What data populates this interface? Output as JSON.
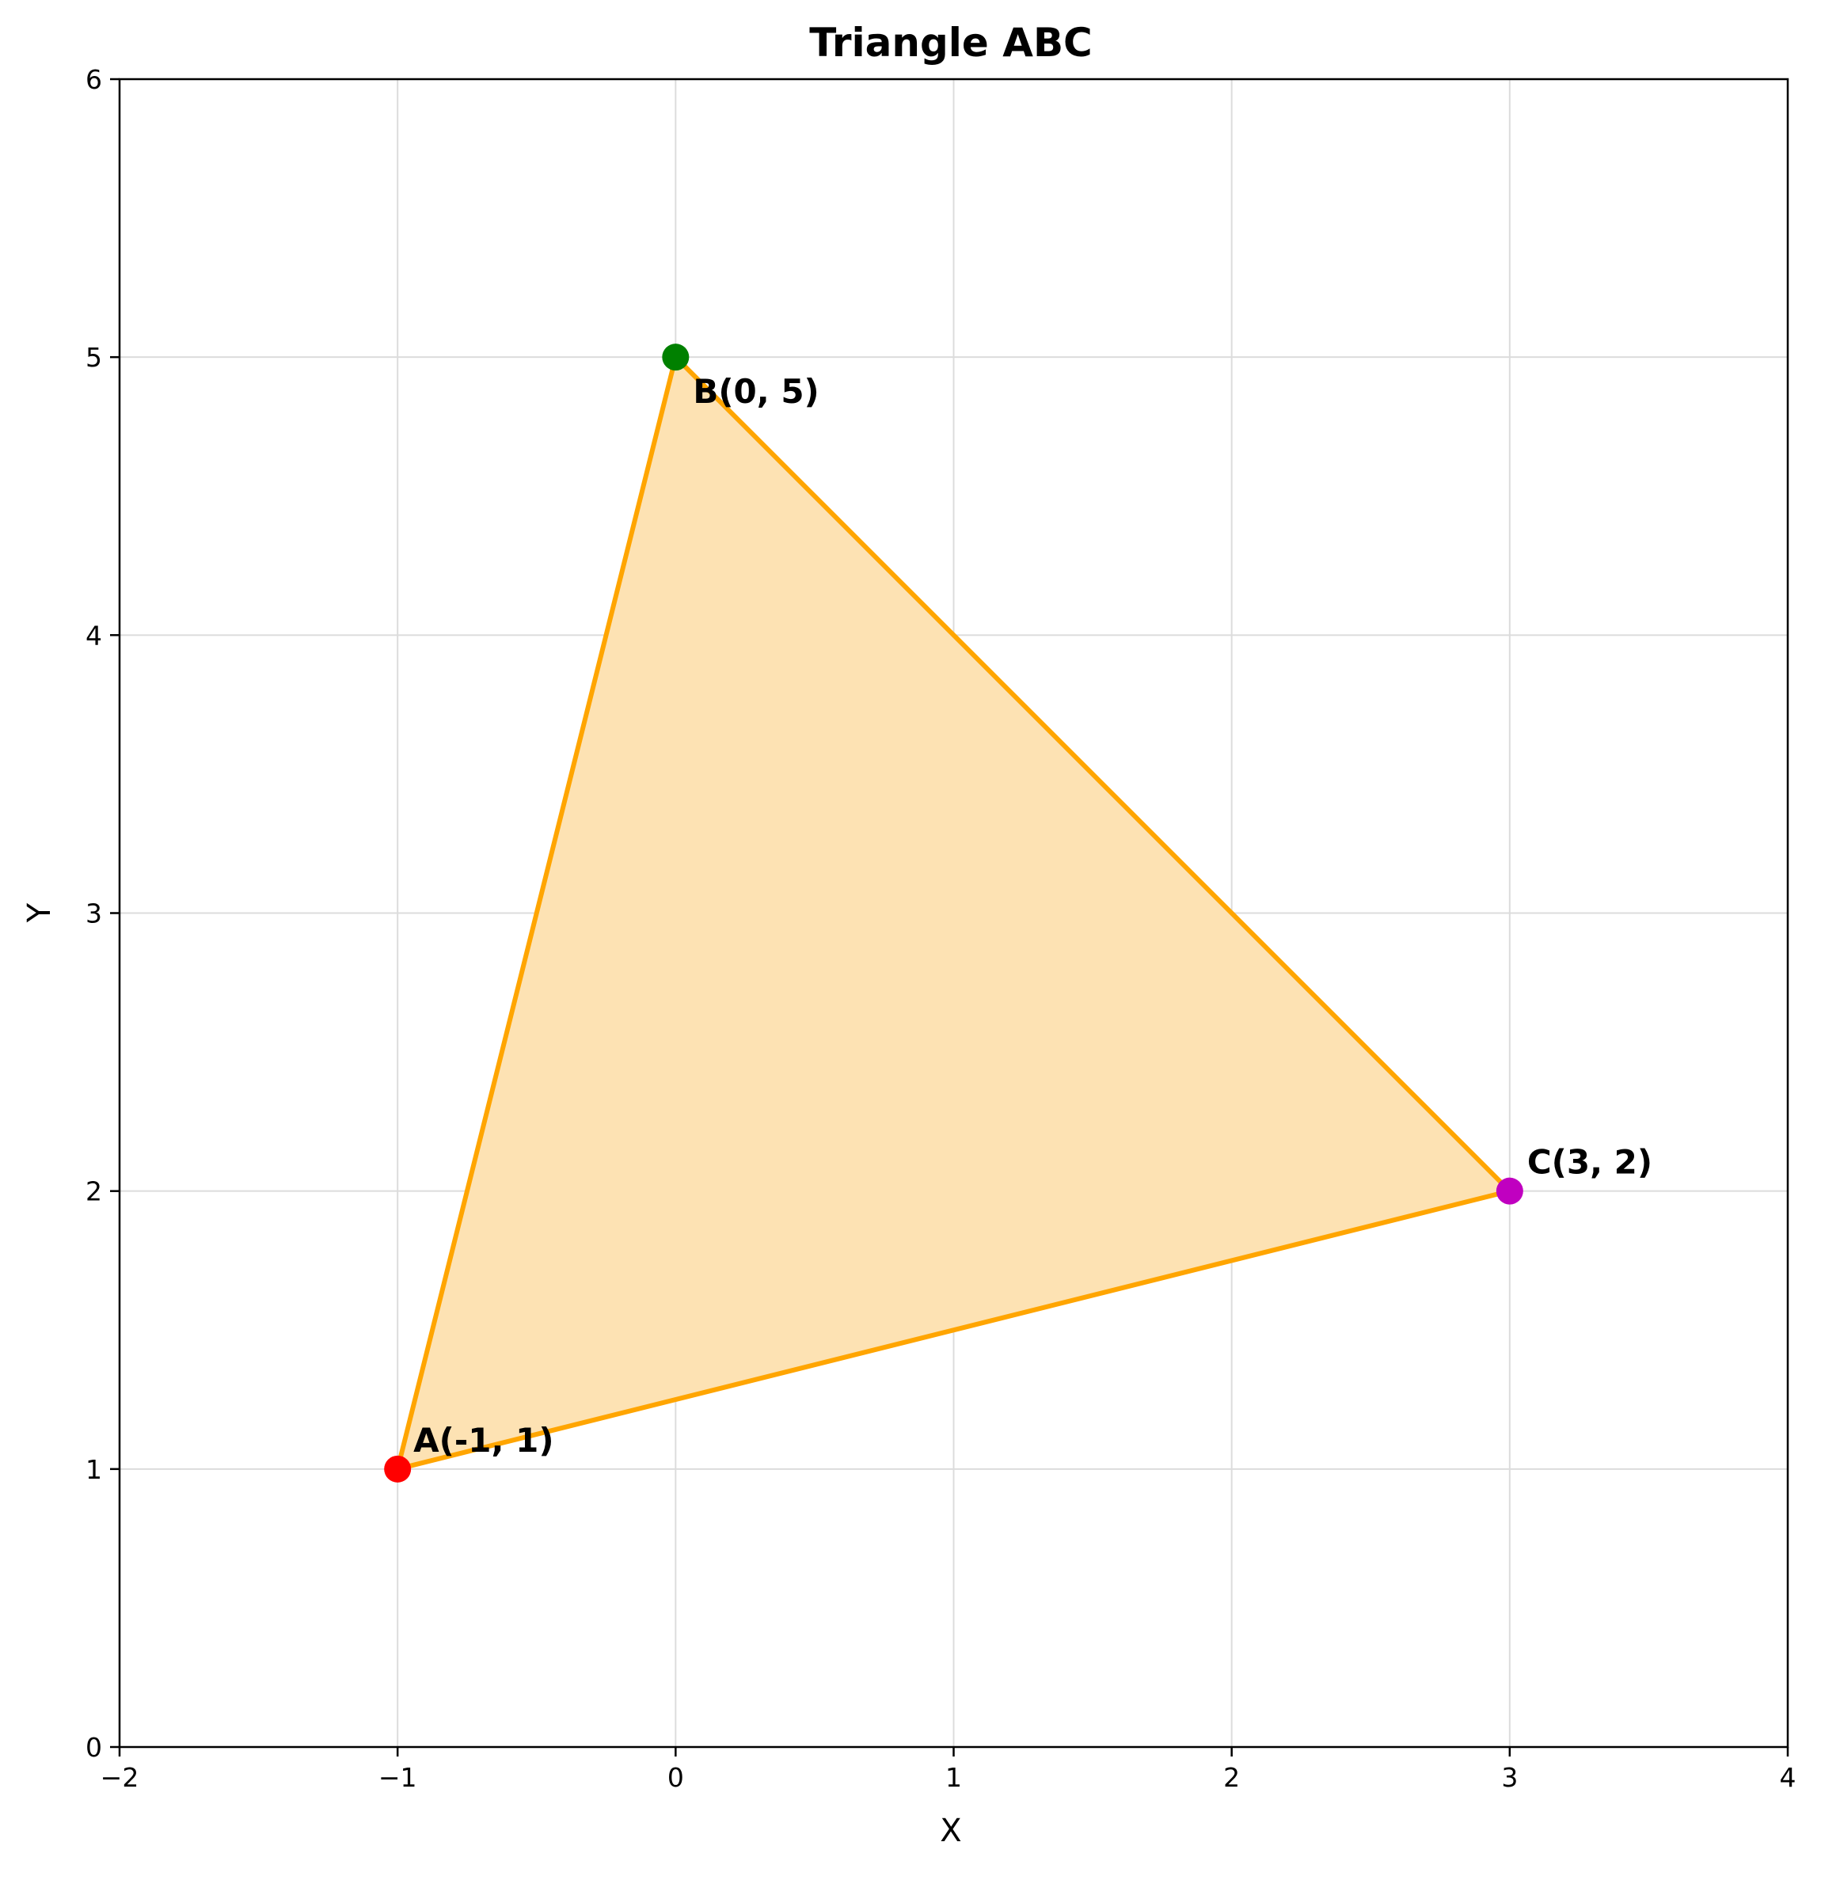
{
  "chart_data": {
    "type": "scatter",
    "title": "Triangle ABC",
    "xlabel": "X",
    "ylabel": "Y",
    "xlim": [
      -2,
      4
    ],
    "ylim": [
      0,
      6
    ],
    "x_ticks": [
      -2,
      -1,
      0,
      1,
      2,
      3,
      4
    ],
    "x_tick_labels": [
      "−2",
      "−1",
      "0",
      "1",
      "2",
      "3",
      "4"
    ],
    "y_ticks": [
      0,
      1,
      2,
      3,
      4,
      5,
      6
    ],
    "y_tick_labels": [
      "0",
      "1",
      "2",
      "3",
      "4",
      "5",
      "6"
    ],
    "grid": true,
    "fill_color": "#fde2b3",
    "edge_color": "#ffa500",
    "vertices": [
      {
        "name": "A",
        "x": -1,
        "y": 1,
        "label": "A(-1, 1)",
        "color": "#ff0000"
      },
      {
        "name": "B",
        "x": 0,
        "y": 5,
        "label": "B(0, 5)",
        "color": "#008000"
      },
      {
        "name": "C",
        "x": 3,
        "y": 2,
        "label": "C(3, 2)",
        "color": "#c000c0"
      }
    ]
  }
}
